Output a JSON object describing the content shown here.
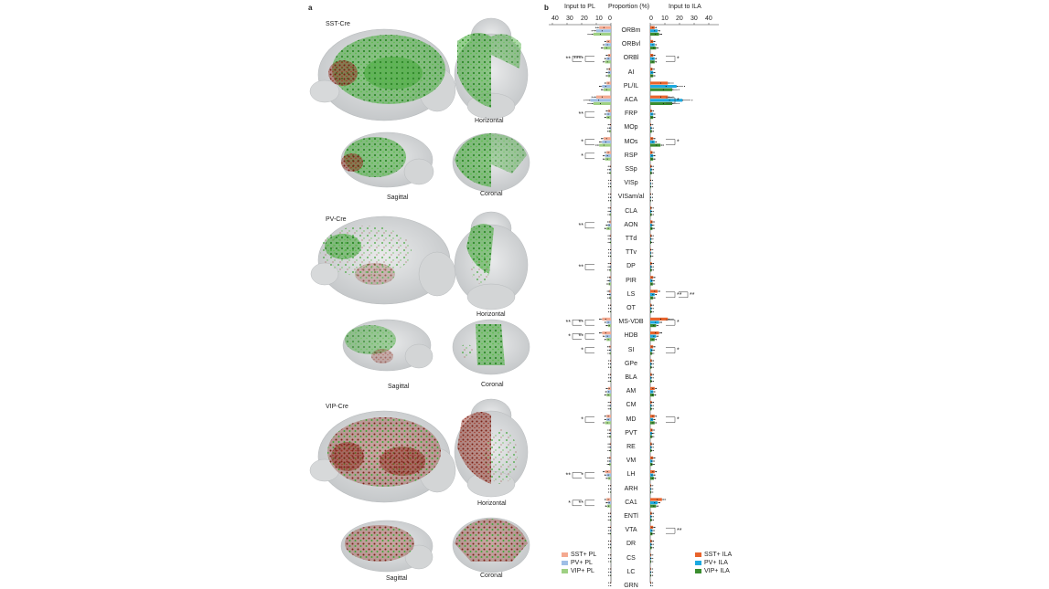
{
  "panels": {
    "a": "a",
    "b": "b"
  },
  "panel_a": {
    "rows": [
      {
        "label": "SST-Cre",
        "views": {
          "horizontal": "Horizontal",
          "sagittal": "Sagittal",
          "coronal": "Coronal"
        }
      },
      {
        "label": "PV-Cre",
        "views": {
          "horizontal": "Horizontal",
          "sagittal": "Sagittal",
          "coronal": "Coronal"
        }
      },
      {
        "label": "VIP-Cre",
        "views": {
          "horizontal": "Horizontal",
          "sagittal": "Sagittal",
          "coronal": "Coronal"
        }
      }
    ],
    "colors": {
      "brain": "#cfd2d4",
      "green": "#3fa535",
      "red": "#8b2a1c"
    }
  },
  "panel_b": {
    "header": {
      "left": "Input to PL",
      "center": "Proportion (%)",
      "right": "Input to ILA"
    },
    "left_ticks": [
      "40",
      "30",
      "20",
      "10",
      "0"
    ],
    "right_ticks": [
      "0",
      "10",
      "20",
      "30",
      "40"
    ],
    "legend_left": [
      "SST+ PL",
      "PV+ PL",
      "VIP+ PL"
    ],
    "legend_right": [
      "SST+ ILA",
      "PV+ ILA",
      "VIP+ ILA"
    ],
    "colors": {
      "sst_pl": "#f4a990",
      "pv_pl": "#9fbfe6",
      "vip_pl": "#9ed083",
      "sst_ila": "#e8632b",
      "pv_ila": "#1ca9e0",
      "vip_ila": "#3a8d2f"
    },
    "regions": [
      "ORBm",
      "ORBvl",
      "ORBl",
      "AI",
      "PL/IL",
      "ACA",
      "FRP",
      "MOp",
      "MOs",
      "RSP",
      "SSp",
      "VISp",
      "VISam/al",
      "CLA",
      "AON",
      "TTd",
      "TTv",
      "DP",
      "PIR",
      "LS",
      "OT",
      "MS-VDB",
      "HDB",
      "SI",
      "GPe",
      "BLA",
      "AM",
      "CM",
      "MD",
      "PVT",
      "RE",
      "VM",
      "LH",
      "ARH",
      "CA1",
      "ENTl",
      "VTA",
      "DR",
      "CS",
      "LC",
      "GRN"
    ],
    "pl_values": {
      "sst": [
        8,
        3,
        2,
        1.5,
        3,
        10,
        2,
        0.5,
        5,
        3,
        0.5,
        0.2,
        0.2,
        0.5,
        1,
        0.6,
        0.3,
        0.5,
        0.8,
        1.2,
        0.3,
        6,
        6,
        1,
        0.4,
        0.4,
        2,
        0.5,
        3,
        0.8,
        0.6,
        1,
        4,
        0.3,
        3,
        0.4,
        0.5,
        0.3,
        0.2,
        0.2,
        0.2
      ],
      "pv": [
        10,
        4,
        3,
        2,
        6,
        14,
        3,
        0.8,
        6,
        4,
        0.8,
        0.3,
        0.3,
        0.6,
        2,
        0.5,
        0.3,
        0.6,
        1.2,
        1,
        0.3,
        3,
        4,
        0.8,
        0.3,
        0.4,
        2.5,
        0.6,
        3,
        0.7,
        0.6,
        1,
        3,
        0.3,
        2,
        0.4,
        0.4,
        0.3,
        0.2,
        0.2,
        0.2
      ],
      "vip": [
        12,
        5,
        4,
        2,
        5,
        12,
        3,
        1,
        8,
        4,
        0.8,
        0.3,
        0.3,
        0.7,
        3,
        0.6,
        0.3,
        0.8,
        1.5,
        0.8,
        0.3,
        2,
        3,
        0.7,
        0.3,
        0.5,
        3,
        0.5,
        4,
        0.8,
        0.7,
        1.2,
        2,
        0.3,
        2.5,
        0.5,
        0.5,
        0.3,
        0.2,
        0.2,
        0.2
      ]
    },
    "ila_values": {
      "sst": [
        3,
        2,
        2,
        1.5,
        12,
        12,
        1,
        0.5,
        2,
        1.5,
        0.8,
        0.3,
        0.3,
        0.8,
        1.5,
        0.8,
        0.5,
        1,
        2,
        5,
        0.8,
        12,
        6,
        2,
        1,
        1,
        3,
        1,
        3,
        1.5,
        1,
        2,
        3,
        0.5,
        8,
        1,
        2,
        1,
        0.5,
        0.4,
        0.4
      ],
      "pv": [
        5,
        3,
        3,
        2,
        18,
        22,
        2,
        0.8,
        3,
        2,
        1,
        0.4,
        0.3,
        0.8,
        1.2,
        0.6,
        0.5,
        0.8,
        1.5,
        3,
        0.8,
        6,
        4,
        1.5,
        0.8,
        0.8,
        2,
        0.8,
        2,
        1.2,
        0.8,
        1.5,
        2,
        0.5,
        5,
        0.8,
        1.5,
        0.8,
        0.5,
        0.4,
        0.4
      ],
      "vip": [
        6,
        4,
        3,
        2,
        15,
        15,
        2,
        1,
        7,
        2,
        1,
        0.4,
        0.3,
        0.9,
        1.5,
        0.7,
        0.5,
        0.9,
        1.8,
        2,
        0.8,
        4,
        3,
        1.2,
        0.8,
        0.9,
        2.5,
        0.8,
        3,
        1.2,
        0.9,
        1.5,
        2.5,
        0.5,
        4,
        0.9,
        1.5,
        0.9,
        0.5,
        0.4,
        0.4
      ]
    },
    "pl_sig": [
      {
        "region": "ORBl",
        "marks": "****"
      },
      {
        "region": "ORBl",
        "marks": "**"
      },
      {
        "region": "FRP",
        "marks": "**"
      },
      {
        "region": "MOs",
        "marks": "*"
      },
      {
        "region": "RSP",
        "marks": "*"
      },
      {
        "region": "AON",
        "marks": "**"
      },
      {
        "region": "DP",
        "marks": "**"
      },
      {
        "region": "MS-VDB",
        "marks": "**"
      },
      {
        "region": "MS-VDB",
        "marks": "**"
      },
      {
        "region": "HDB",
        "marks": "**"
      },
      {
        "region": "HDB",
        "marks": "*"
      },
      {
        "region": "SI",
        "marks": "*"
      },
      {
        "region": "MD",
        "marks": "*"
      },
      {
        "region": "LH",
        "marks": "*"
      },
      {
        "region": "LH",
        "marks": "**"
      },
      {
        "region": "CA1",
        "marks": "**"
      },
      {
        "region": "CA1",
        "marks": "*"
      }
    ],
    "ila_sig": [
      {
        "region": "ORBl",
        "marks": "*"
      },
      {
        "region": "ACA",
        "marks": "*"
      },
      {
        "region": "MOs",
        "marks": "*"
      },
      {
        "region": "LS",
        "marks": "**"
      },
      {
        "region": "LS",
        "marks": "**"
      },
      {
        "region": "MS-VDB",
        "marks": "*"
      },
      {
        "region": "SI",
        "marks": "*"
      },
      {
        "region": "MD",
        "marks": "*"
      },
      {
        "region": "VTA",
        "marks": "**"
      }
    ]
  }
}
